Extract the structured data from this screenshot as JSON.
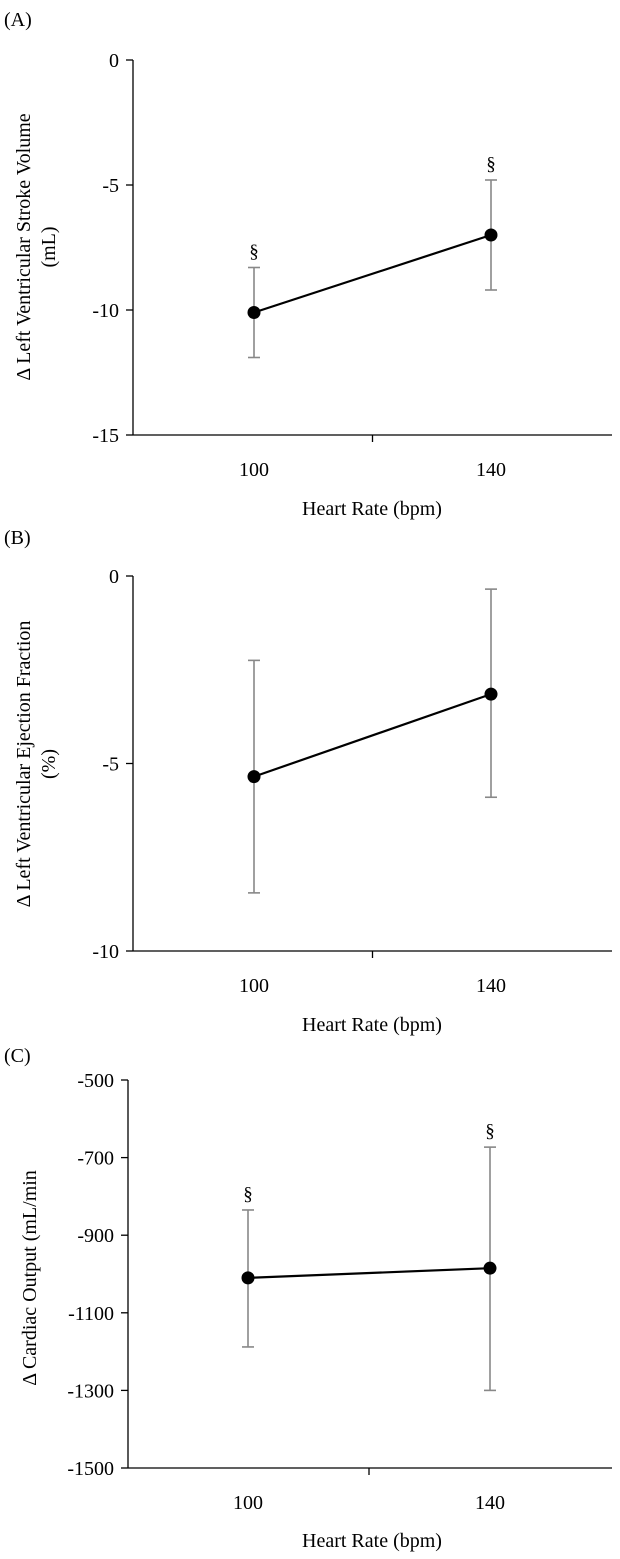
{
  "chart_data": [
    {
      "type": "line",
      "panel_label": "(A)",
      "xlabel": "Heart Rate (bpm)",
      "ylabel_lines": [
        "Δ Left Ventricular Stroke Volume",
        "(mL)"
      ],
      "categories": [
        "100",
        "140"
      ],
      "ylim": [
        -15,
        0
      ],
      "yticks": [
        "0",
        "-5",
        "-10",
        "-15"
      ],
      "series": [
        {
          "values": [
            -10.1,
            -7.0
          ],
          "error_high": [
            -8.3,
            -4.8
          ],
          "error_low": [
            -11.9,
            -9.2
          ],
          "markers": [
            "§",
            "§"
          ]
        }
      ],
      "color": "#000000",
      "error_color": "#888888"
    },
    {
      "type": "line",
      "panel_label": "(B)",
      "xlabel": "Heart Rate (bpm)",
      "ylabel_lines": [
        "Δ Left Ventricular Ejection Fraction",
        "(%)"
      ],
      "categories": [
        "100",
        "140"
      ],
      "ylim": [
        -10,
        0
      ],
      "yticks": [
        "0",
        "-5",
        "-10"
      ],
      "series": [
        {
          "values": [
            -5.35,
            -3.15
          ],
          "error_high": [
            -2.25,
            -0.35
          ],
          "error_low": [
            -8.45,
            -5.9
          ],
          "markers": [
            "",
            ""
          ]
        }
      ],
      "color": "#000000",
      "error_color": "#888888"
    },
    {
      "type": "line",
      "panel_label": "(C)",
      "xlabel": "Heart Rate (bpm)",
      "ylabel_lines": [
        "Δ Cardiac Output (mL/min"
      ],
      "categories": [
        "100",
        "140"
      ],
      "ylim": [
        -1500,
        -500
      ],
      "yticks": [
        "-500",
        "-700",
        "-900",
        "-1100",
        "-1300",
        "-1500"
      ],
      "series": [
        {
          "values": [
            -1010,
            -985
          ],
          "error_high": [
            -835,
            -673
          ],
          "error_low": [
            -1188,
            -1300
          ],
          "markers": [
            "§",
            "§"
          ]
        }
      ],
      "color": "#000000",
      "error_color": "#888888"
    }
  ]
}
